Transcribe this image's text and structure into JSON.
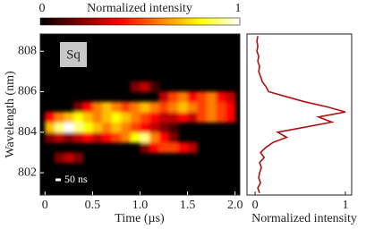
{
  "chart_data": [
    {
      "type": "heatmap",
      "xlabel": "Time (µs)",
      "ylabel": "Wavelength (nm)",
      "xlim": [
        -0.05,
        2.05
      ],
      "ylim": [
        800.9,
        808.85
      ],
      "xticks": [
        0,
        0.5,
        {
          "value": 1,
          "label": "1.0"
        },
        1.5,
        {
          "value": 2,
          "label": "2.0"
        }
      ],
      "yticks": [
        802,
        804,
        806,
        808
      ],
      "xbins": [
        0,
        0.1,
        0.2,
        0.3,
        0.4,
        0.5,
        0.6,
        0.7,
        0.8,
        0.9,
        1,
        1.1,
        1.2,
        1.3,
        1.4,
        1.5,
        1.6,
        1.7,
        1.8,
        1.9,
        2
      ],
      "ybins": [
        801,
        801.5,
        802,
        802.5,
        803,
        803.5,
        804,
        804.5,
        805,
        805.5,
        806,
        806.5,
        807,
        807.5,
        808,
        808.5
      ],
      "values": [
        [
          0,
          0,
          0,
          0,
          0,
          0,
          0,
          0,
          0,
          0,
          0,
          0,
          0,
          0,
          0,
          0,
          0,
          0,
          0,
          0
        ],
        [
          0,
          0,
          0,
          0,
          0,
          0,
          0,
          0,
          0,
          0,
          0,
          0,
          0,
          0,
          0,
          0,
          0,
          0,
          0,
          0
        ],
        [
          0,
          0,
          0,
          0,
          0,
          0,
          0,
          0,
          0,
          0,
          0,
          0,
          0,
          0,
          0,
          0,
          0,
          0,
          0,
          0
        ],
        [
          0,
          0.2,
          0.3,
          0.2,
          0,
          0,
          0,
          0,
          0,
          0,
          0,
          0,
          0,
          0,
          0,
          0,
          0,
          0,
          0,
          0
        ],
        [
          0,
          0,
          0,
          0,
          0,
          0,
          0,
          0,
          0,
          0,
          0.2,
          0.4,
          0.5,
          0.5,
          0.4,
          0.3,
          0,
          0,
          0,
          0
        ],
        [
          0.2,
          0.3,
          0.2,
          0.3,
          0.4,
          0.3,
          0.4,
          0.5,
          0.6,
          0.8,
          0.9,
          0.6,
          0.4,
          0.2,
          0,
          0,
          0,
          0,
          0,
          0
        ],
        [
          0.7,
          0.9,
          1,
          0.9,
          0.8,
          0.7,
          0.6,
          0.7,
          0.6,
          0.5,
          0.4,
          0.3,
          0.2,
          0.1,
          0,
          0,
          0,
          0,
          0,
          0
        ],
        [
          0.4,
          0.6,
          0.7,
          0.8,
          0.7,
          0.6,
          0.7,
          0.8,
          0.7,
          0.6,
          0.5,
          0.4,
          0.3,
          0.3,
          0.4,
          0.3,
          0.5,
          0.6,
          0.5,
          0.4
        ],
        [
          0,
          0,
          0,
          0.2,
          0.4,
          0.6,
          0.7,
          0.6,
          0.5,
          0.6,
          0.7,
          0.6,
          0.5,
          0.6,
          0.7,
          0.6,
          0.5,
          0.6,
          0.5,
          0.4
        ],
        [
          0,
          0,
          0,
          0,
          0,
          0,
          0,
          0,
          0,
          0,
          0,
          0,
          0.3,
          0.5,
          0.6,
          0.4,
          0.5,
          0.6,
          0.4,
          0.3
        ],
        [
          0,
          0,
          0,
          0,
          0,
          0,
          0,
          0,
          0,
          0.2,
          0.3,
          0.1,
          0,
          0,
          0,
          0,
          0,
          0,
          0,
          0
        ],
        [
          0,
          0,
          0,
          0,
          0,
          0,
          0,
          0,
          0,
          0,
          0,
          0,
          0,
          0,
          0,
          0,
          0,
          0,
          0,
          0
        ],
        [
          0,
          0,
          0,
          0,
          0,
          0,
          0,
          0,
          0,
          0,
          0,
          0,
          0,
          0,
          0,
          0,
          0,
          0,
          0,
          0
        ],
        [
          0,
          0,
          0,
          0,
          0,
          0,
          0,
          0,
          0,
          0,
          0,
          0,
          0,
          0,
          0,
          0,
          0,
          0,
          0,
          0
        ],
        [
          0,
          0,
          0,
          0,
          0,
          0,
          0,
          0,
          0,
          0,
          0,
          0,
          0,
          0,
          0,
          0,
          0,
          0,
          0,
          0
        ]
      ],
      "colorbar": {
        "label": "Normalized intensity",
        "ticks": [
          0,
          1
        ]
      },
      "annotations": [
        "Sq",
        "50 ns"
      ]
    },
    {
      "type": "line",
      "orientation": "horizontal",
      "xlabel": "Normalized intensity",
      "color": "#b01010",
      "xlim": [
        -0.09,
        1.07
      ],
      "xticks": [
        0,
        1
      ],
      "y": [
        801,
        801.25,
        801.5,
        801.75,
        802,
        802.25,
        802.5,
        802.75,
        803,
        803.25,
        803.5,
        803.75,
        804,
        804.25,
        804.5,
        804.75,
        805,
        805.25,
        805.5,
        805.75,
        806,
        806.25,
        806.5,
        806.75,
        807,
        807.25,
        807.5,
        807.75,
        808,
        808.25,
        808.5,
        808.75
      ],
      "values": [
        0.05,
        0.03,
        0.06,
        0.04,
        0.05,
        0.07,
        0.05,
        0.1,
        0.06,
        0.12,
        0.2,
        0.35,
        0.25,
        0.55,
        0.85,
        0.7,
        1.0,
        0.8,
        0.55,
        0.35,
        0.15,
        0.12,
        0.08,
        0.06,
        0.04,
        0.05,
        0.03,
        0.04,
        0.02,
        0.03,
        0.02,
        0.03
      ]
    }
  ]
}
